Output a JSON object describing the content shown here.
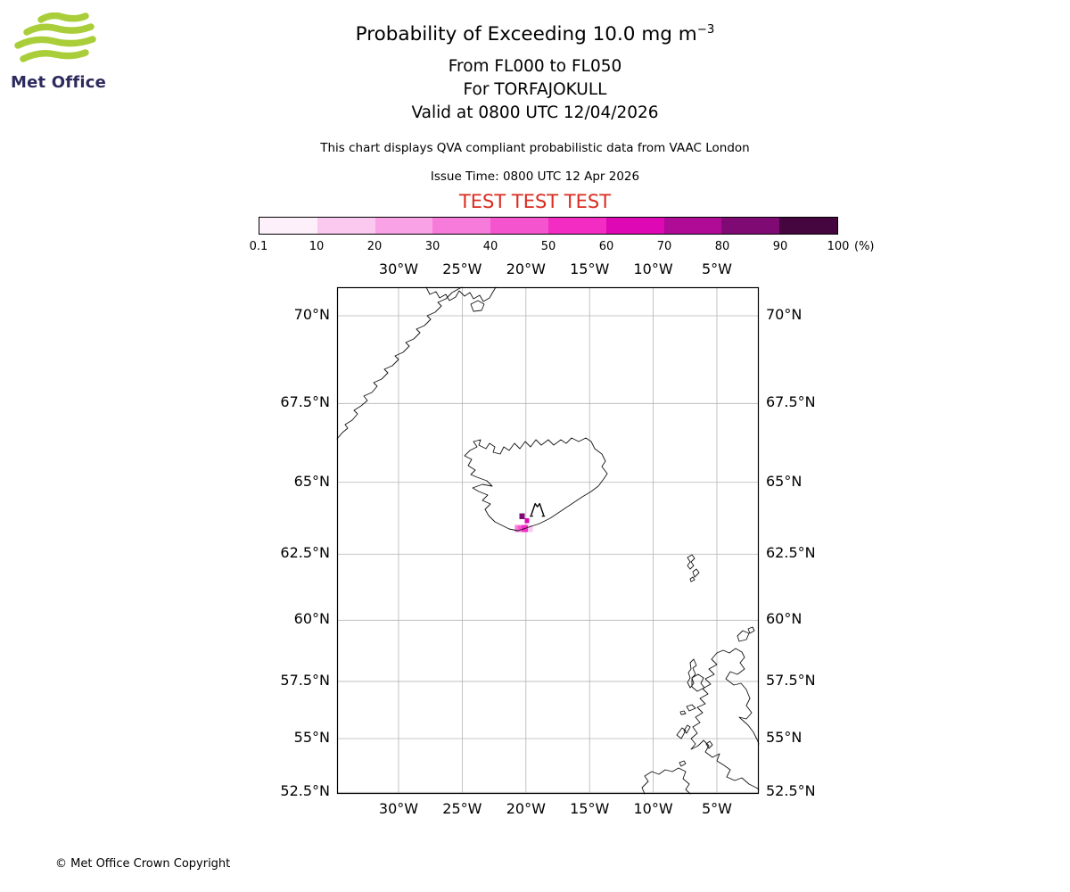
{
  "logo": {
    "brand": "Met Office",
    "wave_color": "#a9ce39",
    "text_color": "#2d2a5d"
  },
  "header": {
    "title_main": "Probability of Exceeding 10.0 mg m",
    "title_sup": "−3",
    "subtitle_fl": "From FL000 to FL050",
    "subtitle_volcano": "For TORFAJOKULL",
    "subtitle_valid": "Valid at 0800 UTC 12/04/2026",
    "description": "This chart displays QVA compliant probabilistic data from VAAC London",
    "issue_time": "Issue Time: 0800 UTC 12 Apr 2026",
    "test_banner": "TEST TEST TEST",
    "test_color": "#d92b20"
  },
  "footer": {
    "copyright": "© Met Office Crown Copyright"
  },
  "chart_data": {
    "type": "heatmap",
    "subtype": "geographic-probability-map",
    "projection": "mercator",
    "grid": true,
    "map_extent": {
      "lon_min": -34.8,
      "lon_max": -1.7,
      "lat_min": 52.4,
      "lat_max": 70.8
    },
    "colorbar": {
      "unit_label": "(%)",
      "tick_labels": [
        "0.1",
        "10",
        "20",
        "30",
        "40",
        "50",
        "60",
        "70",
        "80",
        "90",
        "100"
      ],
      "colors": [
        "#fdf0fb",
        "#fbc9f0",
        "#f9a2e5",
        "#f77bda",
        "#f554cf",
        "#f32dc4",
        "#de09b4",
        "#b00b97",
        "#7f0a74",
        "#45053f"
      ]
    },
    "x_axis": {
      "ticks": [
        {
          "label": "30°W",
          "lon": -30
        },
        {
          "label": "25°W",
          "lon": -25
        },
        {
          "label": "20°W",
          "lon": -20
        },
        {
          "label": "15°W",
          "lon": -15
        },
        {
          "label": "10°W",
          "lon": -10
        },
        {
          "label": "5°W",
          "lon": -5
        }
      ]
    },
    "y_axis": {
      "ticks": [
        {
          "label": "70°N",
          "lat": 70
        },
        {
          "label": "67.5°N",
          "lat": 67.5
        },
        {
          "label": "65°N",
          "lat": 65
        },
        {
          "label": "62.5°N",
          "lat": 62.5
        },
        {
          "label": "60°N",
          "lat": 60
        },
        {
          "label": "57.5°N",
          "lat": 57.5
        },
        {
          "label": "55°N",
          "lat": 55
        },
        {
          "label": "52.5°N",
          "lat": 52.5
        }
      ]
    },
    "volcano": {
      "name": "TORFAJOKULL",
      "lon": -19.1,
      "lat": 64.1
    },
    "cells": [
      {
        "lon_min": -20.5,
        "lon_max": -20.1,
        "lat_min": 63.75,
        "lat_max": 63.95,
        "probability_pct": "80-90",
        "color": "#7f0a74"
      },
      {
        "lon_min": -20.1,
        "lon_max": -19.75,
        "lat_min": 63.6,
        "lat_max": 63.78,
        "probability_pct": "60-70",
        "color": "#de09b4"
      },
      {
        "lon_min": -20.85,
        "lon_max": -20.35,
        "lat_min": 63.3,
        "lat_max": 63.55,
        "probability_pct": "30-40",
        "color": "#f77bda"
      },
      {
        "lon_min": -20.35,
        "lon_max": -19.85,
        "lat_min": 63.3,
        "lat_max": 63.55,
        "probability_pct": "50-60",
        "color": "#f32dc4"
      },
      {
        "lon_min": -19.85,
        "lon_max": -19.45,
        "lat_min": 63.3,
        "lat_max": 63.55,
        "probability_pct": "10-20",
        "color": "#fbc9f0"
      },
      {
        "lon_min": -20.6,
        "lon_max": -20.35,
        "lat_min": 63.38,
        "lat_max": 63.52,
        "probability_pct": "40-50",
        "color": "#f554cf"
      }
    ]
  }
}
